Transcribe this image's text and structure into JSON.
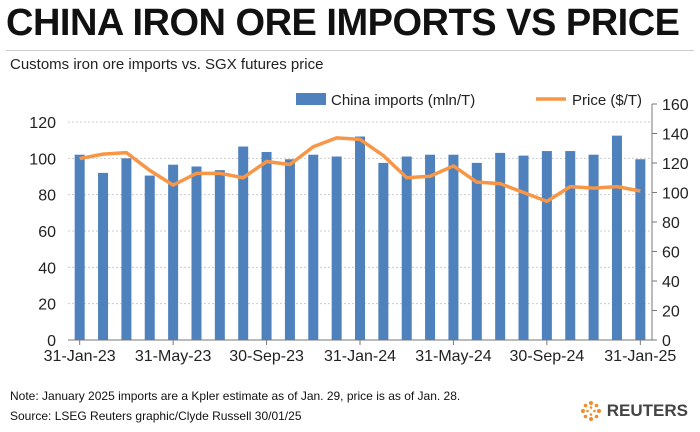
{
  "chart_data": {
    "type": "bar+line",
    "title": "CHINA IRON ORE IMPORTS VS PRICE",
    "subtitle": "Customs iron ore imports vs. SGX futures price",
    "x_tick_labels": [
      "31-Jan-23",
      "31-May-23",
      "30-Sep-23",
      "31-Jan-24",
      "31-May-24",
      "30-Sep-24",
      "31-Jan-25"
    ],
    "left_axis": {
      "ticks": [
        0,
        20,
        40,
        60,
        80,
        100,
        120
      ],
      "ylim": [
        0,
        120
      ]
    },
    "right_axis": {
      "ticks": [
        0,
        20,
        40,
        60,
        80,
        100,
        120,
        140,
        160
      ],
      "ylim": [
        0,
        160
      ]
    },
    "grid": true,
    "legend_position": "top",
    "series": [
      {
        "name": "China imports (mln/T)",
        "type": "bar",
        "axis": "left",
        "color": "#4f81bd",
        "values": [
          102,
          92,
          100,
          90.5,
          96.5,
          95.5,
          93.5,
          106.5,
          103.5,
          99.5,
          102,
          101,
          112,
          97.5,
          101,
          102,
          102,
          97.5,
          103,
          101.5,
          104,
          104,
          102,
          112.5,
          99.5
        ]
      },
      {
        "name": "Price ($/T)",
        "type": "line",
        "axis": "right",
        "color": "#f79646",
        "values": [
          123,
          126,
          127,
          115,
          105,
          113,
          113,
          110,
          121,
          119,
          131,
          137,
          136,
          125,
          110,
          111,
          118,
          107,
          106,
          100,
          94,
          104,
          103,
          104,
          101
        ]
      }
    ]
  },
  "note": "Note: January 2025 imports are a Kpler estimate as of Jan. 29, price is as of Jan. 28.",
  "source": "Source: LSEG    Reuters graphic/Clyde Russell 30/01/25",
  "logo": "REUTERS"
}
